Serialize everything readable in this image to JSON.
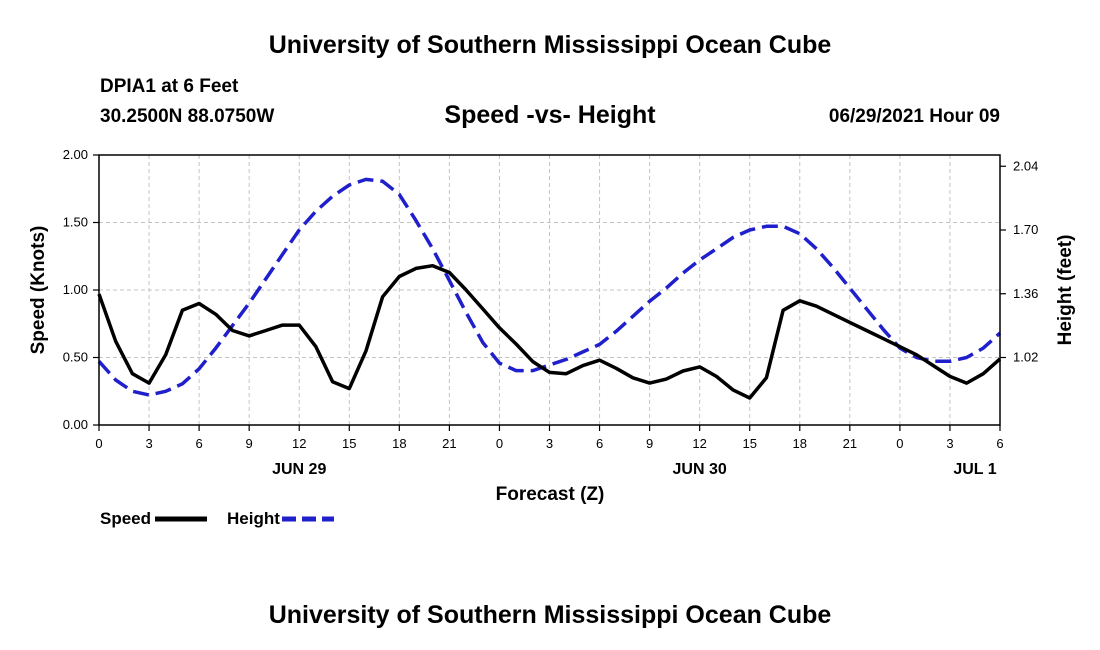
{
  "page": {
    "top_title": "University of Southern Mississippi Ocean Cube",
    "bottom_title": "University of Southern Mississippi Ocean Cube",
    "station": "DPIA1 at 6 Feet",
    "coords": "30.2500N  88.0750W",
    "datetime": "06/29/2021 Hour 09"
  },
  "chart_data": {
    "type": "line",
    "title": "Speed -vs- Height",
    "xlabel": "Forecast (Z)",
    "ylabel": "Speed (Knots)",
    "ylabel_right": "Height (feet)",
    "x_unit": "hours from 06/29 00Z",
    "xlim": [
      0,
      54
    ],
    "ylim": [
      0,
      2.0
    ],
    "ylim_right": [
      0.66,
      2.1
    ],
    "yticks": [
      0,
      0.5,
      1.0,
      1.5,
      2.0
    ],
    "ytick_labels": [
      "0.00",
      "0.50",
      "1.00",
      "1.50",
      "2.00"
    ],
    "yticks_right": [
      1.02,
      1.36,
      1.7,
      2.04
    ],
    "ytick_labels_right": [
      "1.02",
      "1.36",
      "1.70",
      "2.04"
    ],
    "xticks": [
      0,
      3,
      6,
      9,
      12,
      15,
      18,
      21,
      24,
      27,
      30,
      33,
      36,
      39,
      42,
      45,
      48,
      51,
      54
    ],
    "xtick_labels": [
      "0",
      "3",
      "6",
      "9",
      "12",
      "15",
      "18",
      "21",
      "0",
      "3",
      "6",
      "9",
      "12",
      "15",
      "18",
      "21",
      "0",
      "3",
      "6"
    ],
    "date_labels": [
      {
        "x": 12,
        "label": "JUN 29"
      },
      {
        "x": 36,
        "label": "JUN 30"
      },
      {
        "x": 52.5,
        "label": "JUL 1"
      }
    ],
    "grid": true,
    "legend_position": "bottom-left",
    "series": [
      {
        "name": "Speed",
        "axis": "left",
        "color": "#000000",
        "style": "solid",
        "x": [
          0,
          1,
          2,
          3,
          4,
          5,
          6,
          7,
          8,
          9,
          10,
          11,
          12,
          13,
          14,
          15,
          16,
          17,
          18,
          19,
          20,
          21,
          22,
          23,
          24,
          25,
          26,
          27,
          28,
          29,
          30,
          31,
          32,
          33,
          34,
          35,
          36,
          37,
          38,
          39,
          40,
          41,
          42,
          43,
          44,
          45,
          46,
          47,
          48,
          49,
          50,
          51,
          52,
          53,
          54
        ],
        "values": [
          0.97,
          0.62,
          0.38,
          0.31,
          0.52,
          0.85,
          0.9,
          0.82,
          0.7,
          0.66,
          0.7,
          0.74,
          0.74,
          0.58,
          0.32,
          0.27,
          0.55,
          0.95,
          1.1,
          1.16,
          1.18,
          1.13,
          1.0,
          0.86,
          0.72,
          0.6,
          0.47,
          0.39,
          0.38,
          0.44,
          0.48,
          0.42,
          0.35,
          0.31,
          0.34,
          0.4,
          0.43,
          0.36,
          0.26,
          0.2,
          0.35,
          0.85,
          0.92,
          0.88,
          0.82,
          0.76,
          0.7,
          0.64,
          0.58,
          0.52,
          0.44,
          0.36,
          0.31,
          0.38,
          0.49
        ]
      },
      {
        "name": "Height",
        "axis": "right",
        "color": "#1f1fcc",
        "style": "dashed",
        "x": [
          0,
          1,
          2,
          3,
          4,
          5,
          6,
          7,
          8,
          9,
          10,
          11,
          12,
          13,
          14,
          15,
          16,
          17,
          18,
          19,
          20,
          21,
          22,
          23,
          24,
          25,
          26,
          27,
          28,
          29,
          30,
          31,
          32,
          33,
          34,
          35,
          36,
          37,
          38,
          39,
          40,
          41,
          42,
          43,
          44,
          45,
          46,
          47,
          48,
          49,
          50,
          51,
          52,
          53,
          54
        ],
        "values": [
          1.0,
          0.9,
          0.84,
          0.82,
          0.84,
          0.88,
          0.96,
          1.07,
          1.19,
          1.31,
          1.44,
          1.57,
          1.7,
          1.8,
          1.88,
          1.94,
          1.97,
          1.96,
          1.89,
          1.75,
          1.6,
          1.43,
          1.26,
          1.1,
          0.99,
          0.95,
          0.95,
          0.98,
          1.01,
          1.05,
          1.09,
          1.16,
          1.24,
          1.32,
          1.39,
          1.47,
          1.54,
          1.6,
          1.66,
          1.7,
          1.72,
          1.72,
          1.68,
          1.6,
          1.5,
          1.39,
          1.28,
          1.17,
          1.07,
          1.02,
          1.0,
          1.0,
          1.02,
          1.07,
          1.15
        ]
      }
    ]
  }
}
